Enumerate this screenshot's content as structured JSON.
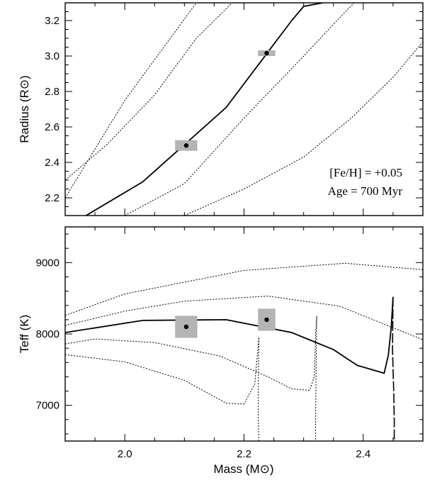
{
  "chart_data": [
    {
      "type": "line",
      "panel": "top",
      "xlabel": "",
      "ylabel": "Radius (R⊙)",
      "xlim": [
        1.9,
        2.5
      ],
      "ylim": [
        2.1,
        3.3
      ],
      "xticks": [
        2.0,
        2.2,
        2.4
      ],
      "yticks": [
        2.2,
        2.4,
        2.6,
        2.8,
        3.0,
        3.2
      ],
      "ytick_labels": [
        "2.2",
        "2.4",
        "2.6",
        "2.8",
        "3.0",
        "3.2"
      ],
      "annotations": [
        "[Fe/H] = +0.05",
        "Age = 700 Myr"
      ],
      "series": [
        {
          "name": "700 Myr isochrone",
          "style": "solid",
          "x": [
            1.935,
            2.03,
            2.17,
            2.28,
            2.3,
            2.332
          ],
          "y": [
            2.1,
            2.29,
            2.71,
            3.2,
            3.28,
            3.3
          ]
        },
        {
          "name": "isochrone-1",
          "style": "dotted",
          "x": [
            1.9,
            2.0,
            2.12,
            2.2
          ],
          "y": [
            2.2,
            2.75,
            3.3,
            3.3
          ]
        },
        {
          "name": "isochrone-2",
          "style": "dotted",
          "x": [
            1.9,
            1.97,
            2.05,
            2.12,
            2.18,
            2.205
          ],
          "y": [
            2.3,
            2.5,
            2.78,
            3.1,
            3.3,
            3.3
          ]
        },
        {
          "name": "isochrone-3",
          "style": "dotted",
          "x": [
            2.0,
            2.1,
            2.2,
            2.3,
            2.37,
            2.385
          ],
          "y": [
            2.1,
            2.28,
            2.65,
            3.0,
            3.25,
            3.3
          ]
        },
        {
          "name": "isochrone-4",
          "style": "dotted",
          "x": [
            2.1,
            2.2,
            2.3,
            2.38,
            2.45,
            2.5
          ],
          "y": [
            2.1,
            2.25,
            2.43,
            2.65,
            2.88,
            3.08
          ]
        }
      ],
      "points": [
        {
          "x": 2.103,
          "y": 2.495,
          "xerr": 0.018,
          "yerr": 0.028
        },
        {
          "x": 2.238,
          "y": 3.016,
          "xerr": 0.014,
          "yerr": 0.014
        }
      ]
    },
    {
      "type": "line",
      "panel": "bottom",
      "xlabel": "Mass (M⊙)",
      "ylabel": "Teff (K)",
      "xlim": [
        1.9,
        2.5
      ],
      "ylim": [
        6500,
        9500
      ],
      "xticks": [
        2.0,
        2.2,
        2.4
      ],
      "xtick_labels": [
        "2.0",
        "2.2",
        "2.4"
      ],
      "yticks": [
        7000,
        8000,
        9000
      ],
      "ytick_labels": [
        "7000",
        "8000",
        "9000"
      ],
      "series": [
        {
          "name": "700 Myr isochrone",
          "style": "solid",
          "x": [
            1.9,
            2.03,
            2.17,
            2.28,
            2.35,
            2.39,
            2.435,
            2.442,
            2.447,
            2.45
          ],
          "y": [
            8020,
            8190,
            8200,
            8020,
            7780,
            7560,
            7450,
            7700,
            8100,
            8520
          ]
        },
        {
          "name": "700 Myr isochrone (post-MS)",
          "style": "dashed",
          "x": [
            2.45,
            2.449,
            2.451,
            2.452,
            2.452
          ],
          "y": [
            8520,
            7800,
            7200,
            6800,
            6500
          ]
        },
        {
          "name": "isochrone-1",
          "style": "dotted",
          "x": [
            1.9,
            2.0,
            2.2,
            2.37,
            2.5
          ],
          "y": [
            8260,
            8560,
            8890,
            8990,
            8900
          ]
        },
        {
          "name": "isochrone-2",
          "style": "dotted",
          "x": [
            1.9,
            2.0,
            2.1,
            2.24,
            2.36,
            2.44,
            2.5
          ],
          "y": [
            8120,
            8320,
            8460,
            8530,
            8390,
            8120,
            7920
          ]
        },
        {
          "name": "isochrone-3",
          "style": "dotted",
          "x": [
            1.9,
            1.95,
            2.05,
            2.16,
            2.24,
            2.28,
            2.31,
            2.318,
            2.32,
            2.322
          ],
          "y": [
            7860,
            7930,
            7880,
            7690,
            7400,
            7230,
            7210,
            7400,
            8000,
            8250
          ]
        },
        {
          "name": "isochrone-3 (post-MS)",
          "style": "dotted",
          "x": [
            2.322,
            2.321,
            2.32,
            2.32
          ],
          "y": [
            8250,
            7500,
            6800,
            6500
          ]
        },
        {
          "name": "isochrone-4",
          "style": "dotted",
          "x": [
            1.9,
            2.0,
            2.1,
            2.17,
            2.2,
            2.218,
            2.225
          ],
          "y": [
            7710,
            7610,
            7350,
            7030,
            7020,
            7300,
            7950
          ]
        },
        {
          "name": "isochrone-4 (post-MS)",
          "style": "dotted",
          "x": [
            2.225,
            2.224,
            2.224,
            2.225
          ],
          "y": [
            7950,
            7300,
            6800,
            6500
          ]
        }
      ],
      "points": [
        {
          "x": 2.103,
          "y": 8100,
          "xerr": 0.018,
          "yerr": 150
        },
        {
          "x": 2.238,
          "y": 8200,
          "xerr": 0.014,
          "yerr": 150
        }
      ]
    }
  ]
}
